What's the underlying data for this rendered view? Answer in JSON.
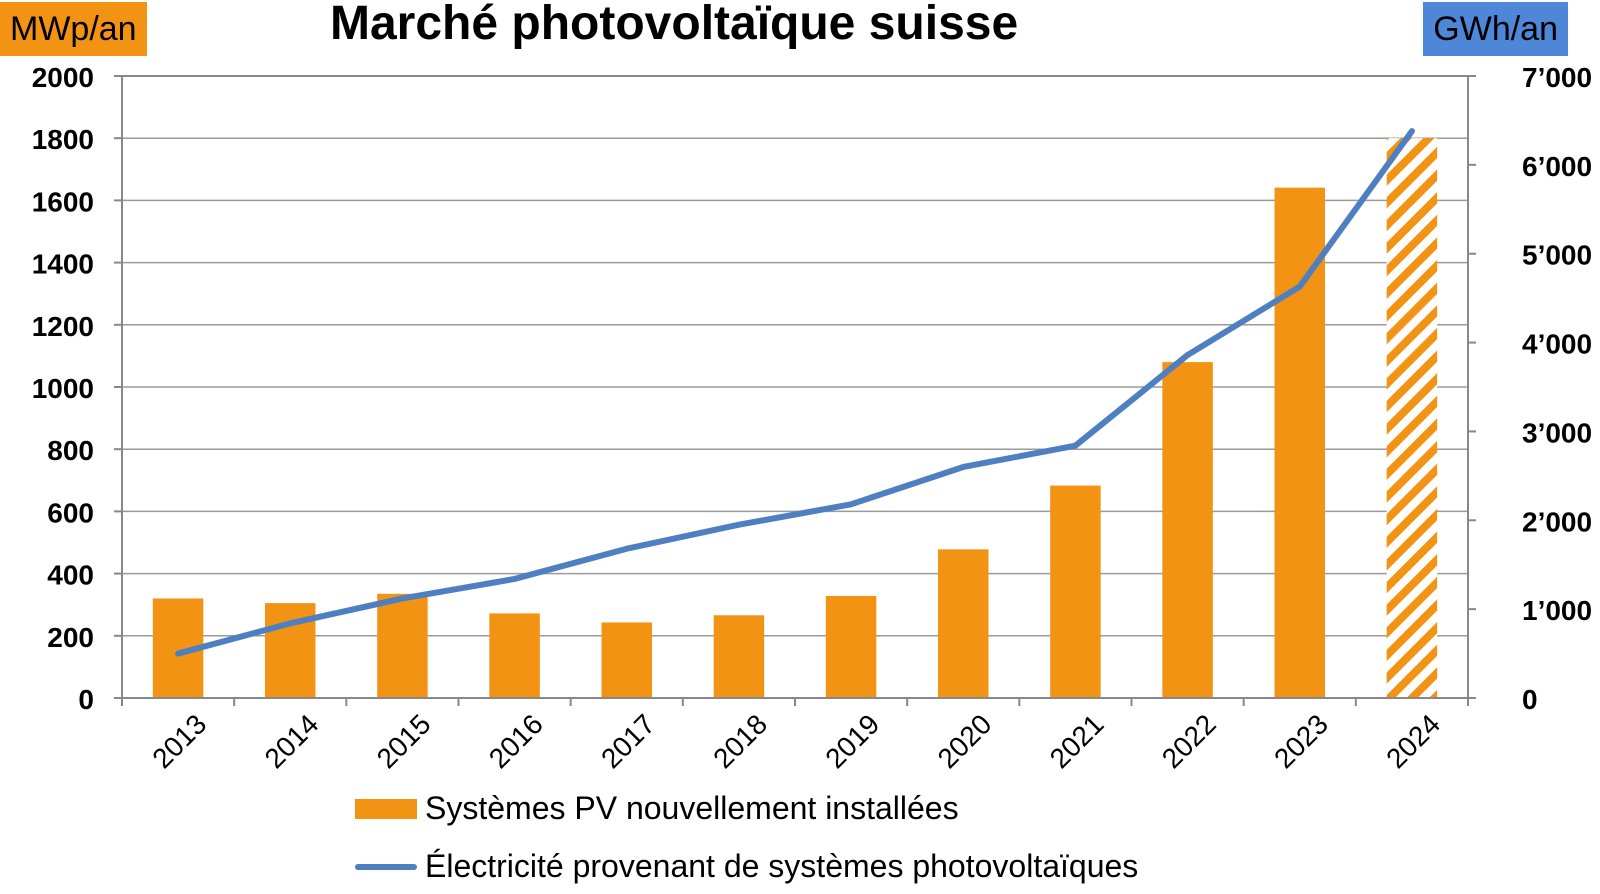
{
  "title": "Marché photovoltaïque suisse",
  "left_unit": "MWp/an",
  "right_unit": "GWh/an",
  "colors": {
    "bar": "#F39314",
    "line": "#4E7FC0",
    "left_tag": "#F39314",
    "right_tag": "#4E86D8",
    "grid": "#9a9a9a"
  },
  "legend": {
    "bars": "Systèmes PV nouvellement installées",
    "line": "Électricité provenant de systèmes photovoltaïques"
  },
  "chart_data": {
    "type": "bar",
    "title": "Marché photovoltaïque suisse",
    "categories": [
      "2013",
      "2014",
      "2015",
      "2016",
      "2017",
      "2018",
      "2019",
      "2020",
      "2021",
      "2022",
      "2023",
      "2024"
    ],
    "series": [
      {
        "name": "Systèmes PV nouvellement installées",
        "type": "bar",
        "axis": "left",
        "values": [
          320,
          305,
          335,
          272,
          243,
          266,
          328,
          478,
          683,
          1080,
          1641,
          1800
        ],
        "estimated_last": true
      },
      {
        "name": "Électricité provenant de systèmes photovoltaïques",
        "type": "line",
        "axis": "right",
        "values": [
          500,
          840,
          1120,
          1340,
          1680,
          1950,
          2180,
          2600,
          2840,
          3860,
          4630,
          6380
        ]
      }
    ],
    "y_left": {
      "min": 0,
      "max": 2000,
      "ticks": [
        "0",
        "200",
        "400",
        "600",
        "800",
        "1000",
        "1200",
        "1400",
        "1600",
        "1800",
        "2000"
      ]
    },
    "y_right": {
      "min": 0,
      "max": 7000,
      "ticks": [
        "0",
        "1’000",
        "2’000",
        "3’000",
        "4’000",
        "5’000",
        "6’000",
        "7’000"
      ]
    },
    "grid": true,
    "legend_position": "bottom"
  }
}
